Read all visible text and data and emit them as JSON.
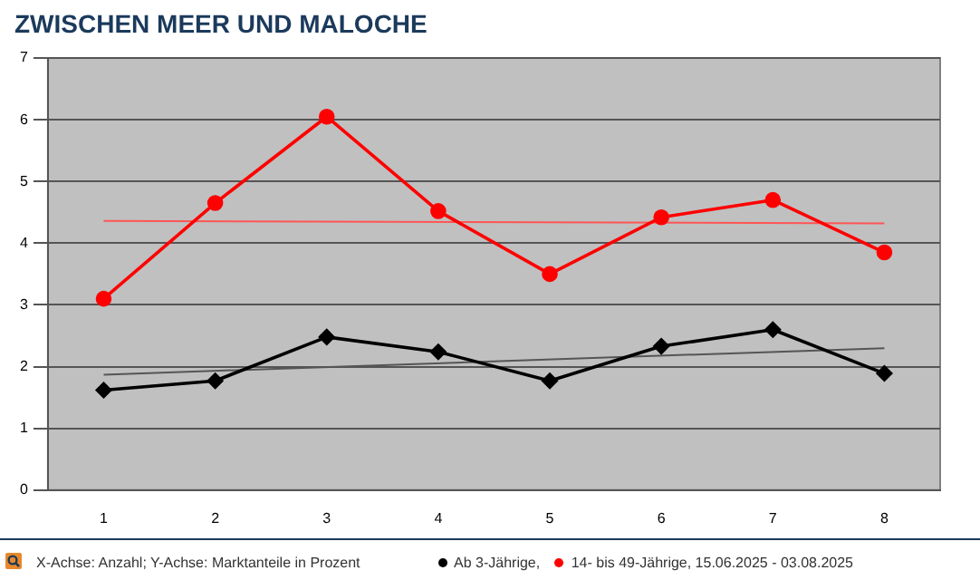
{
  "chart_data": {
    "type": "line",
    "title": "ZWISCHEN MEER UND MALOCHE",
    "categories": [
      "1",
      "2",
      "3",
      "4",
      "5",
      "6",
      "7",
      "8"
    ],
    "series": [
      {
        "name": "Ab 3-Jährige,",
        "color": "#000000",
        "marker": "diamond",
        "values": [
          1.62,
          1.77,
          2.48,
          2.24,
          1.77,
          2.33,
          2.6,
          1.89
        ]
      },
      {
        "name": "14- bis 49-Jährige, 15.06.2025 - 03.08.2025",
        "color": "#ff0000",
        "marker": "circle",
        "values": [
          3.1,
          4.65,
          6.05,
          4.52,
          3.5,
          4.42,
          4.7,
          3.85
        ]
      },
      {
        "type": "line",
        "color": "#555555",
        "marker": "none",
        "x": [
          "1",
          "8"
        ],
        "values": [
          1.87,
          2.3
        ]
      },
      {
        "type": "line",
        "color": "#ff5555",
        "marker": "none",
        "x": [
          "1",
          "8"
        ],
        "values": [
          4.36,
          4.32
        ]
      }
    ],
    "ylim": [
      0,
      7
    ],
    "yticks": [
      0,
      1,
      2,
      3,
      4,
      5,
      6,
      7
    ],
    "grid": "y",
    "legend": "bottom",
    "annotations": [
      "X-Achse: Anzahl; Y-Achse: Marktanteile in Prozent"
    ]
  }
}
